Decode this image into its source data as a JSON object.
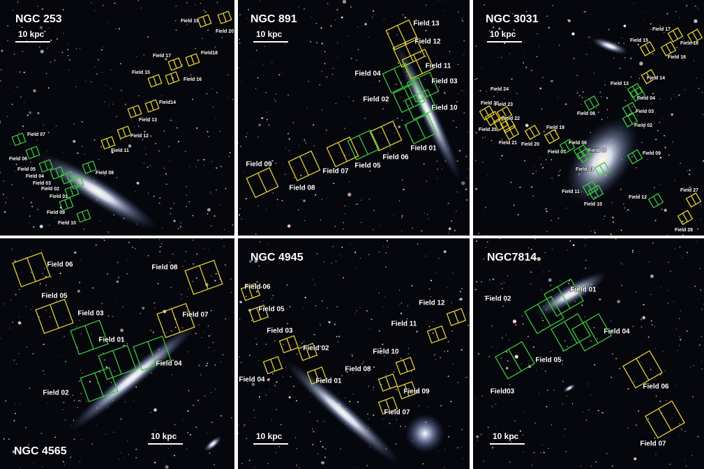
{
  "panels": [
    {
      "title": "NGC 253",
      "scale": "10 kpc",
      "fields": [
        "Field 19",
        "Field 20",
        "Field18",
        "Field 17",
        "Field 15",
        "Field 16",
        "Field14",
        "Field 13",
        "Field 12",
        "Field 11",
        "Field 08",
        "Field 07",
        "Field 06",
        "Field 05",
        "Field 04",
        "Field 03",
        "Field 02",
        "Field 01",
        "Field 09",
        "Field 10"
      ]
    },
    {
      "title": "NGC 891",
      "scale": "10 kpc",
      "fields": [
        "Field 13",
        "Field 12",
        "Field 11",
        "Field 04",
        "Field 03",
        "Field 02",
        "Field 10",
        "Field 01",
        "Field 06",
        "Field 05",
        "Field 07",
        "Field 09",
        "Field 08"
      ]
    },
    {
      "title": "NGC 3031",
      "scale": "10 kpc",
      "fields": [
        "Field 17",
        "Field 18",
        "Field 15",
        "Field 16",
        "Field 14",
        "Field 13",
        "Field 04",
        "Field 03",
        "Field 02",
        "Field 24",
        "Field 26",
        "Field 23",
        "Field 22",
        "Field 25,",
        "Field 21",
        "Field 20",
        "Field 19",
        "Field 08",
        "Field 07",
        "Field 06",
        "Field 05",
        "Field 09",
        "Field 01",
        "Field 11",
        "Field 10",
        "Field 12",
        "Field 27",
        "Field 28"
      ]
    },
    {
      "title": "NGC 4565",
      "scale": "10 kpc",
      "fields": [
        "Field 06",
        "Field 05",
        "Field 03",
        "Field 01",
        "Field 04",
        "Field 02",
        "Field 08",
        "Field 07"
      ]
    },
    {
      "title": "NGC 4945",
      "scale": "10 kpc",
      "fields": [
        "Field 06",
        "Field 05",
        "Field 03",
        "Field 02",
        "Field 04",
        "Field 01",
        "Field 10",
        "Field 08",
        "Field 09",
        "Field 07",
        "Field 12",
        "Field 11"
      ]
    },
    {
      "title": "NGC7814",
      "scale": "10 kpc",
      "fields": [
        "Field 01",
        "Field 02",
        "Field 04",
        "Field 05",
        "Field03",
        "Field 06",
        "Field 07"
      ]
    }
  ]
}
